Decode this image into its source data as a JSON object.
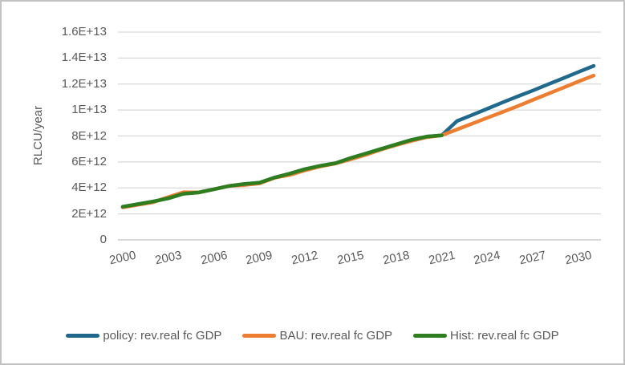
{
  "chart": {
    "y_axis_title": "RLCU/year",
    "y_tick_labels": [
      "0",
      "2E+12",
      "4E+12",
      "6E+12",
      "8E+12",
      "1E+13",
      "1.2E+13",
      "1.4E+13",
      "1.6E+13"
    ],
    "x_tick_labels": [
      "2000",
      "2003",
      "2006",
      "2009",
      "2012",
      "2015",
      "2018",
      "2021",
      "2024",
      "2027",
      "2030"
    ],
    "colors": {
      "policy": "#20698C",
      "bau": "#ED7D31",
      "hist": "#2E7D1F",
      "gridline": "#D9D9D9",
      "axis_line": "#BFBFBF",
      "tick_text": "#595959"
    },
    "legend": [
      {
        "label": "policy: rev.real fc GDP",
        "color": "#20698C"
      },
      {
        "label": "BAU: rev.real fc GDP",
        "color": "#ED7D31"
      },
      {
        "label": "Hist: rev.real fc GDP",
        "color": "#2E7D1F"
      }
    ]
  },
  "chart_data": {
    "type": "line",
    "title": "",
    "xlabel": "",
    "ylabel": "RLCU/year",
    "xlim": [
      2000,
      2031
    ],
    "ylim": [
      0,
      16000000000000.0
    ],
    "y_tick_step": 2000000000000.0,
    "x_ticks": [
      2000,
      2003,
      2006,
      2009,
      2012,
      2015,
      2018,
      2021,
      2024,
      2027,
      2030
    ],
    "grid": true,
    "legend_position": "bottom",
    "x": [
      2000,
      2001,
      2002,
      2003,
      2004,
      2005,
      2006,
      2007,
      2008,
      2009,
      2010,
      2011,
      2012,
      2013,
      2014,
      2015,
      2016,
      2017,
      2018,
      2019,
      2020,
      2021,
      2022,
      2023,
      2024,
      2025,
      2026,
      2027,
      2028,
      2029,
      2030,
      2031
    ],
    "series": [
      {
        "name": "policy: rev.real fc GDP",
        "color": "#20698C",
        "values": [
          2550000000000.0,
          2750000000000.0,
          2950000000000.0,
          3200000000000.0,
          3550000000000.0,
          3650000000000.0,
          3900000000000.0,
          4150000000000.0,
          4300000000000.0,
          4400000000000.0,
          4800000000000.0,
          5100000000000.0,
          5450000000000.0,
          5700000000000.0,
          5900000000000.0,
          6300000000000.0,
          6650000000000.0,
          7000000000000.0,
          7350000000000.0,
          7700000000000.0,
          7950000000000.0,
          8050000000000.0,
          9150000000000.0,
          9620000000000.0,
          10100000000000.0,
          10580000000000.0,
          11050000000000.0,
          11500000000000.0,
          11980000000000.0,
          12450000000000.0,
          12930000000000.0,
          13400000000000.0
        ]
      },
      {
        "name": "BAU: rev.real fc GDP",
        "color": "#ED7D31",
        "values": [
          2500000000000.0,
          2700000000000.0,
          2900000000000.0,
          3300000000000.0,
          3670000000000.0,
          3650000000000.0,
          3900000000000.0,
          4150000000000.0,
          4220000000000.0,
          4350000000000.0,
          4780000000000.0,
          5000000000000.0,
          5350000000000.0,
          5650000000000.0,
          5880000000000.0,
          6200000000000.0,
          6550000000000.0,
          6950000000000.0,
          7300000000000.0,
          7620000000000.0,
          7900000000000.0,
          8050000000000.0,
          8500000000000.0,
          8950000000000.0,
          9400000000000.0,
          9850000000000.0,
          10300000000000.0,
          10780000000000.0,
          11250000000000.0,
          11720000000000.0,
          12200000000000.0,
          12650000000000.0
        ]
      },
      {
        "name": "Hist: rev.real fc GDP",
        "color": "#2E7D1F",
        "values": [
          2550000000000.0,
          2750000000000.0,
          2950000000000.0,
          3200000000000.0,
          3550000000000.0,
          3650000000000.0,
          3900000000000.0,
          4150000000000.0,
          4300000000000.0,
          4400000000000.0,
          4800000000000.0,
          5100000000000.0,
          5450000000000.0,
          5700000000000.0,
          5900000000000.0,
          6300000000000.0,
          6650000000000.0,
          7000000000000.0,
          7350000000000.0,
          7700000000000.0,
          7950000000000.0,
          8050000000000.0,
          null,
          null,
          null,
          null,
          null,
          null,
          null,
          null,
          null,
          null
        ]
      }
    ]
  }
}
